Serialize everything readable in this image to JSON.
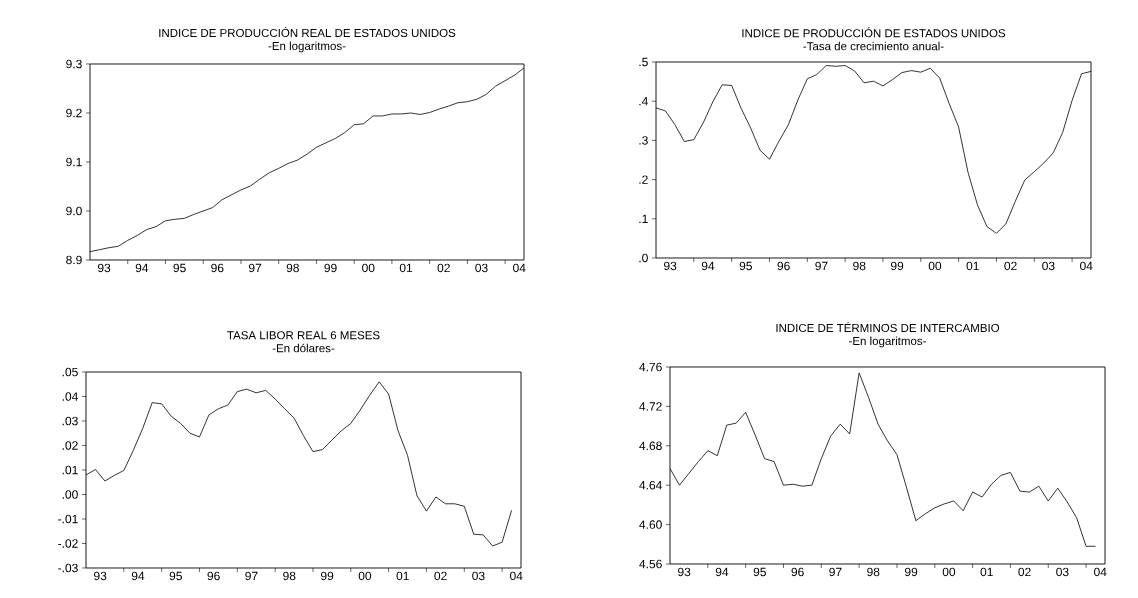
{
  "chart_data": [
    {
      "type": "line",
      "title": "INDICE DE PRODUCCIÓN REAL DE ESTADOS UNIDOS",
      "subtitle": "-En logaritmos-",
      "color": "#000000",
      "x": [
        "1993-01",
        "1993-04",
        "1993-07",
        "1993-10",
        "1994-01",
        "1994-04",
        "1994-07",
        "1994-10",
        "1995-01",
        "1995-04",
        "1995-07",
        "1995-10",
        "1996-01",
        "1996-04",
        "1996-07",
        "1996-10",
        "1997-01",
        "1997-04",
        "1997-07",
        "1997-10",
        "1998-01",
        "1998-04",
        "1998-07",
        "1998-10",
        "1999-01",
        "1999-04",
        "1999-07",
        "1999-10",
        "2000-01",
        "2000-04",
        "2000-07",
        "2000-10",
        "2001-01",
        "2001-04",
        "2001-07",
        "2001-10",
        "2002-01",
        "2002-04",
        "2002-07",
        "2002-10",
        "2003-01",
        "2003-04",
        "2003-07",
        "2003-10",
        "2004-01",
        "2004-04",
        "2004-07"
      ],
      "values": [
        8.917,
        8.921,
        8.925,
        8.928,
        8.94,
        8.95,
        8.962,
        8.968,
        8.98,
        8.983,
        8.985,
        8.993,
        9.0,
        9.007,
        9.023,
        9.033,
        9.043,
        9.051,
        9.065,
        9.078,
        9.087,
        9.097,
        9.104,
        9.116,
        9.13,
        9.139,
        9.148,
        9.16,
        9.176,
        9.178,
        9.194,
        9.194,
        9.198,
        9.198,
        9.2,
        9.197,
        9.201,
        9.208,
        9.214,
        9.221,
        9.223,
        9.228,
        9.238,
        9.255,
        9.266,
        9.277,
        9.292
      ],
      "xlim": [
        "1993-01",
        "2004-07"
      ],
      "ylim": [
        8.9,
        9.3
      ],
      "xticks": [
        {
          "value": "1993-05-16",
          "label": "93"
        },
        {
          "value": "1994-05-16",
          "label": "94"
        },
        {
          "value": "1995-05-16",
          "label": "95"
        },
        {
          "value": "1996-05-16",
          "label": "96"
        },
        {
          "value": "1997-05-16",
          "label": "97"
        },
        {
          "value": "1998-05-16",
          "label": "98"
        },
        {
          "value": "1999-05-16",
          "label": "99"
        },
        {
          "value": "2000-05-16",
          "label": "00"
        },
        {
          "value": "2001-05-16",
          "label": "01"
        },
        {
          "value": "2002-05-16",
          "label": "02"
        },
        {
          "value": "2003-05-16",
          "label": "03"
        },
        {
          "value": "2004-05-16",
          "label": "04"
        },
        {
          "value": "1994-01",
          "label": null
        },
        {
          "value": "1995-01",
          "label": null
        },
        {
          "value": "1996-01",
          "label": null
        },
        {
          "value": "1997-01",
          "label": null
        },
        {
          "value": "1998-01",
          "label": null
        },
        {
          "value": "1999-01",
          "label": null
        },
        {
          "value": "2000-01",
          "label": null
        },
        {
          "value": "2001-01",
          "label": null
        },
        {
          "value": "2002-01",
          "label": null
        },
        {
          "value": "2003-01",
          "label": null
        },
        {
          "value": "2004-01",
          "label": null
        }
      ],
      "yticks": [
        {
          "value": 8.9,
          "label": "8.9"
        },
        {
          "value": 9.0,
          "label": "9.0"
        },
        {
          "value": 9.1,
          "label": "9.1"
        },
        {
          "value": 9.2,
          "label": "9.2"
        },
        {
          "value": 9.3,
          "label": "9.3"
        }
      ]
    },
    {
      "type": "line",
      "title": "INDICE DE PRODUCCIÓN DE ESTADOS UNIDOS",
      "subtitle": "-Tasa de crecimiento anual-",
      "color": "#000000",
      "x": [
        "1993-01",
        "1993-04",
        "1993-07",
        "1993-10",
        "1994-01",
        "1994-04",
        "1994-07",
        "1994-10",
        "1995-01",
        "1995-04",
        "1995-07",
        "1995-10",
        "1996-01",
        "1996-04",
        "1996-07",
        "1996-10",
        "1997-01",
        "1997-04",
        "1997-07",
        "1997-10",
        "1998-01",
        "1998-04",
        "1998-07",
        "1998-10",
        "1999-01",
        "1999-04",
        "1999-07",
        "1999-10",
        "2000-01",
        "2000-04",
        "2000-07",
        "2000-10",
        "2001-01",
        "2001-04",
        "2001-07",
        "2001-10",
        "2002-01",
        "2002-04",
        "2002-07",
        "2002-10",
        "2003-01",
        "2003-04",
        "2003-07",
        "2003-10",
        "2004-01",
        "2004-04",
        "2004-07"
      ],
      "values": [
        0.383,
        0.375,
        0.34,
        0.297,
        0.302,
        0.345,
        0.398,
        0.442,
        0.44,
        0.382,
        0.332,
        0.275,
        0.252,
        0.298,
        0.34,
        0.403,
        0.457,
        0.468,
        0.491,
        0.489,
        0.491,
        0.477,
        0.447,
        0.451,
        0.439,
        0.455,
        0.473,
        0.478,
        0.474,
        0.484,
        0.459,
        0.394,
        0.334,
        0.218,
        0.135,
        0.08,
        0.063,
        0.087,
        0.145,
        0.199,
        0.22,
        0.242,
        0.268,
        0.32,
        0.402,
        0.47,
        0.476
      ],
      "xlim": [
        "1993-01",
        "2004-07"
      ],
      "ylim": [
        0,
        0.5
      ],
      "xticks": [
        {
          "value": "1993-05-16",
          "label": "93"
        },
        {
          "value": "1994-05-16",
          "label": "94"
        },
        {
          "value": "1995-05-16",
          "label": "95"
        },
        {
          "value": "1996-05-16",
          "label": "96"
        },
        {
          "value": "1997-05-16",
          "label": "97"
        },
        {
          "value": "1998-05-16",
          "label": "98"
        },
        {
          "value": "1999-05-16",
          "label": "99"
        },
        {
          "value": "2000-05-16",
          "label": "00"
        },
        {
          "value": "2001-05-16",
          "label": "01"
        },
        {
          "value": "2002-05-16",
          "label": "02"
        },
        {
          "value": "2003-05-16",
          "label": "03"
        },
        {
          "value": "2004-05-16",
          "label": "04"
        },
        {
          "value": "1994-01",
          "label": null
        },
        {
          "value": "1995-01",
          "label": null
        },
        {
          "value": "1996-01",
          "label": null
        },
        {
          "value": "1997-01",
          "label": null
        },
        {
          "value": "1998-01",
          "label": null
        },
        {
          "value": "1999-01",
          "label": null
        },
        {
          "value": "2000-01",
          "label": null
        },
        {
          "value": "2001-01",
          "label": null
        },
        {
          "value": "2002-01",
          "label": null
        },
        {
          "value": "2003-01",
          "label": null
        },
        {
          "value": "2004-01",
          "label": null
        }
      ],
      "yticks": [
        {
          "value": 0,
          "label": ".0"
        },
        {
          "value": 0.1,
          "label": ".1"
        },
        {
          "value": 0.2,
          "label": ".2"
        },
        {
          "value": 0.3,
          "label": ".3"
        },
        {
          "value": 0.4,
          "label": ".4"
        },
        {
          "value": 0.5,
          "label": ".5"
        }
      ]
    },
    {
      "type": "line",
      "title": "TASA LIBOR REAL 6 MESES",
      "subtitle": "-En dólares-",
      "color": "#000000",
      "x": [
        "1993-01",
        "1993-04",
        "1993-07",
        "1993-10",
        "1994-01",
        "1994-04",
        "1994-07",
        "1994-10",
        "1995-01",
        "1995-04",
        "1995-07",
        "1995-10",
        "1996-01",
        "1996-04",
        "1996-07",
        "1996-10",
        "1997-01",
        "1997-04",
        "1997-07",
        "1997-10",
        "1998-01",
        "1998-04",
        "1998-07",
        "1998-10",
        "1999-01",
        "1999-04",
        "1999-07",
        "1999-10",
        "2000-01",
        "2000-04",
        "2000-07",
        "2000-10",
        "2001-01",
        "2001-04",
        "2001-07",
        "2001-10",
        "2002-01",
        "2002-04",
        "2002-07",
        "2002-10",
        "2003-01",
        "2003-04",
        "2003-07",
        "2003-10",
        "2004-01",
        "2004-04"
      ],
      "values": [
        0.008,
        0.0102,
        0.0055,
        0.0078,
        0.0098,
        0.018,
        0.027,
        0.0375,
        0.037,
        0.032,
        0.029,
        0.025,
        0.0235,
        0.0325,
        0.035,
        0.0365,
        0.042,
        0.043,
        0.0415,
        0.0425,
        0.039,
        0.035,
        0.0312,
        0.024,
        0.0175,
        0.0183,
        0.0222,
        0.026,
        0.029,
        0.0345,
        0.0405,
        0.046,
        0.041,
        0.026,
        0.016,
        -0.0005,
        -0.0068,
        -0.001,
        -0.0038,
        -0.0038,
        -0.0048,
        -0.0162,
        -0.0165,
        -0.021,
        -0.0195,
        -0.0065
      ],
      "xlim": [
        "1993-01",
        "2004-07"
      ],
      "ylim": [
        -0.03,
        0.05
      ],
      "xticks": [
        {
          "value": "1993-05-16",
          "label": "93"
        },
        {
          "value": "1994-05-16",
          "label": "94"
        },
        {
          "value": "1995-05-16",
          "label": "95"
        },
        {
          "value": "1996-05-16",
          "label": "96"
        },
        {
          "value": "1997-05-16",
          "label": "97"
        },
        {
          "value": "1998-05-16",
          "label": "98"
        },
        {
          "value": "1999-05-16",
          "label": "99"
        },
        {
          "value": "2000-05-16",
          "label": "00"
        },
        {
          "value": "2001-05-16",
          "label": "01"
        },
        {
          "value": "2002-05-16",
          "label": "02"
        },
        {
          "value": "2003-05-16",
          "label": "03"
        },
        {
          "value": "2004-05-16",
          "label": "04"
        },
        {
          "value": "1994-01",
          "label": null
        },
        {
          "value": "1995-01",
          "label": null
        },
        {
          "value": "1996-01",
          "label": null
        },
        {
          "value": "1997-01",
          "label": null
        },
        {
          "value": "1998-01",
          "label": null
        },
        {
          "value": "1999-01",
          "label": null
        },
        {
          "value": "2000-01",
          "label": null
        },
        {
          "value": "2001-01",
          "label": null
        },
        {
          "value": "2002-01",
          "label": null
        },
        {
          "value": "2003-01",
          "label": null
        },
        {
          "value": "2004-01",
          "label": null
        }
      ],
      "yticks": [
        {
          "value": -0.03,
          "label": "-.03"
        },
        {
          "value": -0.02,
          "label": "-.02"
        },
        {
          "value": -0.01,
          "label": "-.01"
        },
        {
          "value": 0,
          "label": ".00"
        },
        {
          "value": 0.01,
          "label": ".01"
        },
        {
          "value": 0.02,
          "label": ".02"
        },
        {
          "value": 0.03,
          "label": ".03"
        },
        {
          "value": 0.04,
          "label": ".04"
        },
        {
          "value": 0.05,
          "label": ".05"
        }
      ]
    },
    {
      "type": "line",
      "title": "INDICE DE TÉRMINOS DE INTERCAMBIO",
      "subtitle": "-En logaritmos-",
      "color": "#000000",
      "x": [
        "1993-01",
        "1993-04",
        "1993-07",
        "1993-10",
        "1994-01",
        "1994-04",
        "1994-07",
        "1994-10",
        "1995-01",
        "1995-04",
        "1995-07",
        "1995-10",
        "1996-01",
        "1996-04",
        "1996-07",
        "1996-10",
        "1997-01",
        "1997-04",
        "1997-07",
        "1997-10",
        "1998-01",
        "1998-04",
        "1998-07",
        "1998-10",
        "1999-01",
        "1999-04",
        "1999-07",
        "1999-10",
        "2000-01",
        "2000-04",
        "2000-07",
        "2000-10",
        "2001-01",
        "2001-04",
        "2001-07",
        "2001-10",
        "2002-01",
        "2002-04",
        "2002-07",
        "2002-10",
        "2003-01",
        "2003-04",
        "2003-07",
        "2003-10",
        "2004-01",
        "2004-04"
      ],
      "values": [
        4.657,
        4.64,
        4.652,
        4.664,
        4.675,
        4.67,
        4.701,
        4.703,
        4.714,
        4.691,
        4.667,
        4.664,
        4.64,
        4.641,
        4.639,
        4.64,
        4.667,
        4.69,
        4.702,
        4.692,
        4.754,
        4.729,
        4.702,
        4.685,
        4.671,
        4.638,
        4.604,
        4.611,
        4.617,
        4.621,
        4.624,
        4.614,
        4.633,
        4.628,
        4.641,
        4.65,
        4.653,
        4.634,
        4.633,
        4.639,
        4.624,
        4.637,
        4.623,
        4.607,
        4.578,
        4.578
      ],
      "xlim": [
        "1993-01",
        "2004-07"
      ],
      "ylim": [
        4.56,
        4.76
      ],
      "xticks": [
        {
          "value": "1993-05-16",
          "label": "93"
        },
        {
          "value": "1994-05-16",
          "label": "94"
        },
        {
          "value": "1995-05-16",
          "label": "95"
        },
        {
          "value": "1996-05-16",
          "label": "96"
        },
        {
          "value": "1997-05-16",
          "label": "97"
        },
        {
          "value": "1998-05-16",
          "label": "98"
        },
        {
          "value": "1999-05-16",
          "label": "99"
        },
        {
          "value": "2000-05-16",
          "label": "00"
        },
        {
          "value": "2001-05-16",
          "label": "01"
        },
        {
          "value": "2002-05-16",
          "label": "02"
        },
        {
          "value": "2003-05-16",
          "label": "03"
        },
        {
          "value": "2004-05-16",
          "label": "04"
        },
        {
          "value": "1994-01",
          "label": null
        },
        {
          "value": "1995-01",
          "label": null
        },
        {
          "value": "1996-01",
          "label": null
        },
        {
          "value": "1997-01",
          "label": null
        },
        {
          "value": "1998-01",
          "label": null
        },
        {
          "value": "1999-01",
          "label": null
        },
        {
          "value": "2000-01",
          "label": null
        },
        {
          "value": "2001-01",
          "label": null
        },
        {
          "value": "2002-01",
          "label": null
        },
        {
          "value": "2003-01",
          "label": null
        },
        {
          "value": "2004-01",
          "label": null
        }
      ],
      "yticks": [
        {
          "value": 4.56,
          "label": "4.56"
        },
        {
          "value": 4.6,
          "label": "4.60"
        },
        {
          "value": 4.64,
          "label": "4.64"
        },
        {
          "value": 4.68,
          "label": "4.68"
        },
        {
          "value": 4.72,
          "label": "4.72"
        },
        {
          "value": 4.76,
          "label": "4.76"
        }
      ]
    }
  ]
}
